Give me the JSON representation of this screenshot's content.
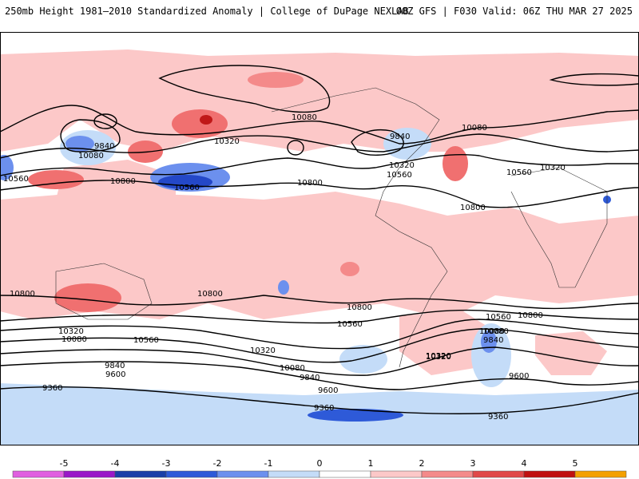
{
  "header": {
    "title": "250mb Height 1981–2010 Standardized Anomaly | College of DuPage NEXLAB",
    "run_info": "00Z GFS | F030 Valid: 06Z THU MAR 27 2025"
  },
  "contour_labels": [
    "10080",
    "9840",
    "10080",
    "10320",
    "10560",
    "10800",
    "10560",
    "10080",
    "10320",
    "9840",
    "10320",
    "10560",
    "10800",
    "10080",
    "10560",
    "10320",
    "10800",
    "10800",
    "10800",
    "10320",
    "10080",
    "10560",
    "10320",
    "10800",
    "10560",
    "9840",
    "9600",
    "10320",
    "10080",
    "9840",
    "9600",
    "9360",
    "9360",
    "9360",
    "10080",
    "9840",
    "10320",
    "10560",
    "10800",
    "9600"
  ],
  "colorbar": {
    "labels": [
      "-5",
      "-4",
      "-3",
      "-2",
      "-1",
      "0",
      "1",
      "2",
      "3",
      "4",
      "5"
    ],
    "colors": [
      "#e060e0",
      "#9a18c8",
      "#1a3ea8",
      "#2e5ad8",
      "#6c90ee",
      "#c4dcf8",
      "#ffffff",
      "#fcc8c8",
      "#f48a8a",
      "#e04848",
      "#c01010",
      "#f4a000"
    ]
  },
  "colors": {
    "positive_anomaly": "#fcc8c8",
    "positive_strong": "#f07070",
    "positive_extreme": "#c01818",
    "negative_anomaly": "#c4dcf8",
    "negative_moderate": "#6c90ee",
    "negative_strong": "#2448c8",
    "contour": "#000000"
  }
}
